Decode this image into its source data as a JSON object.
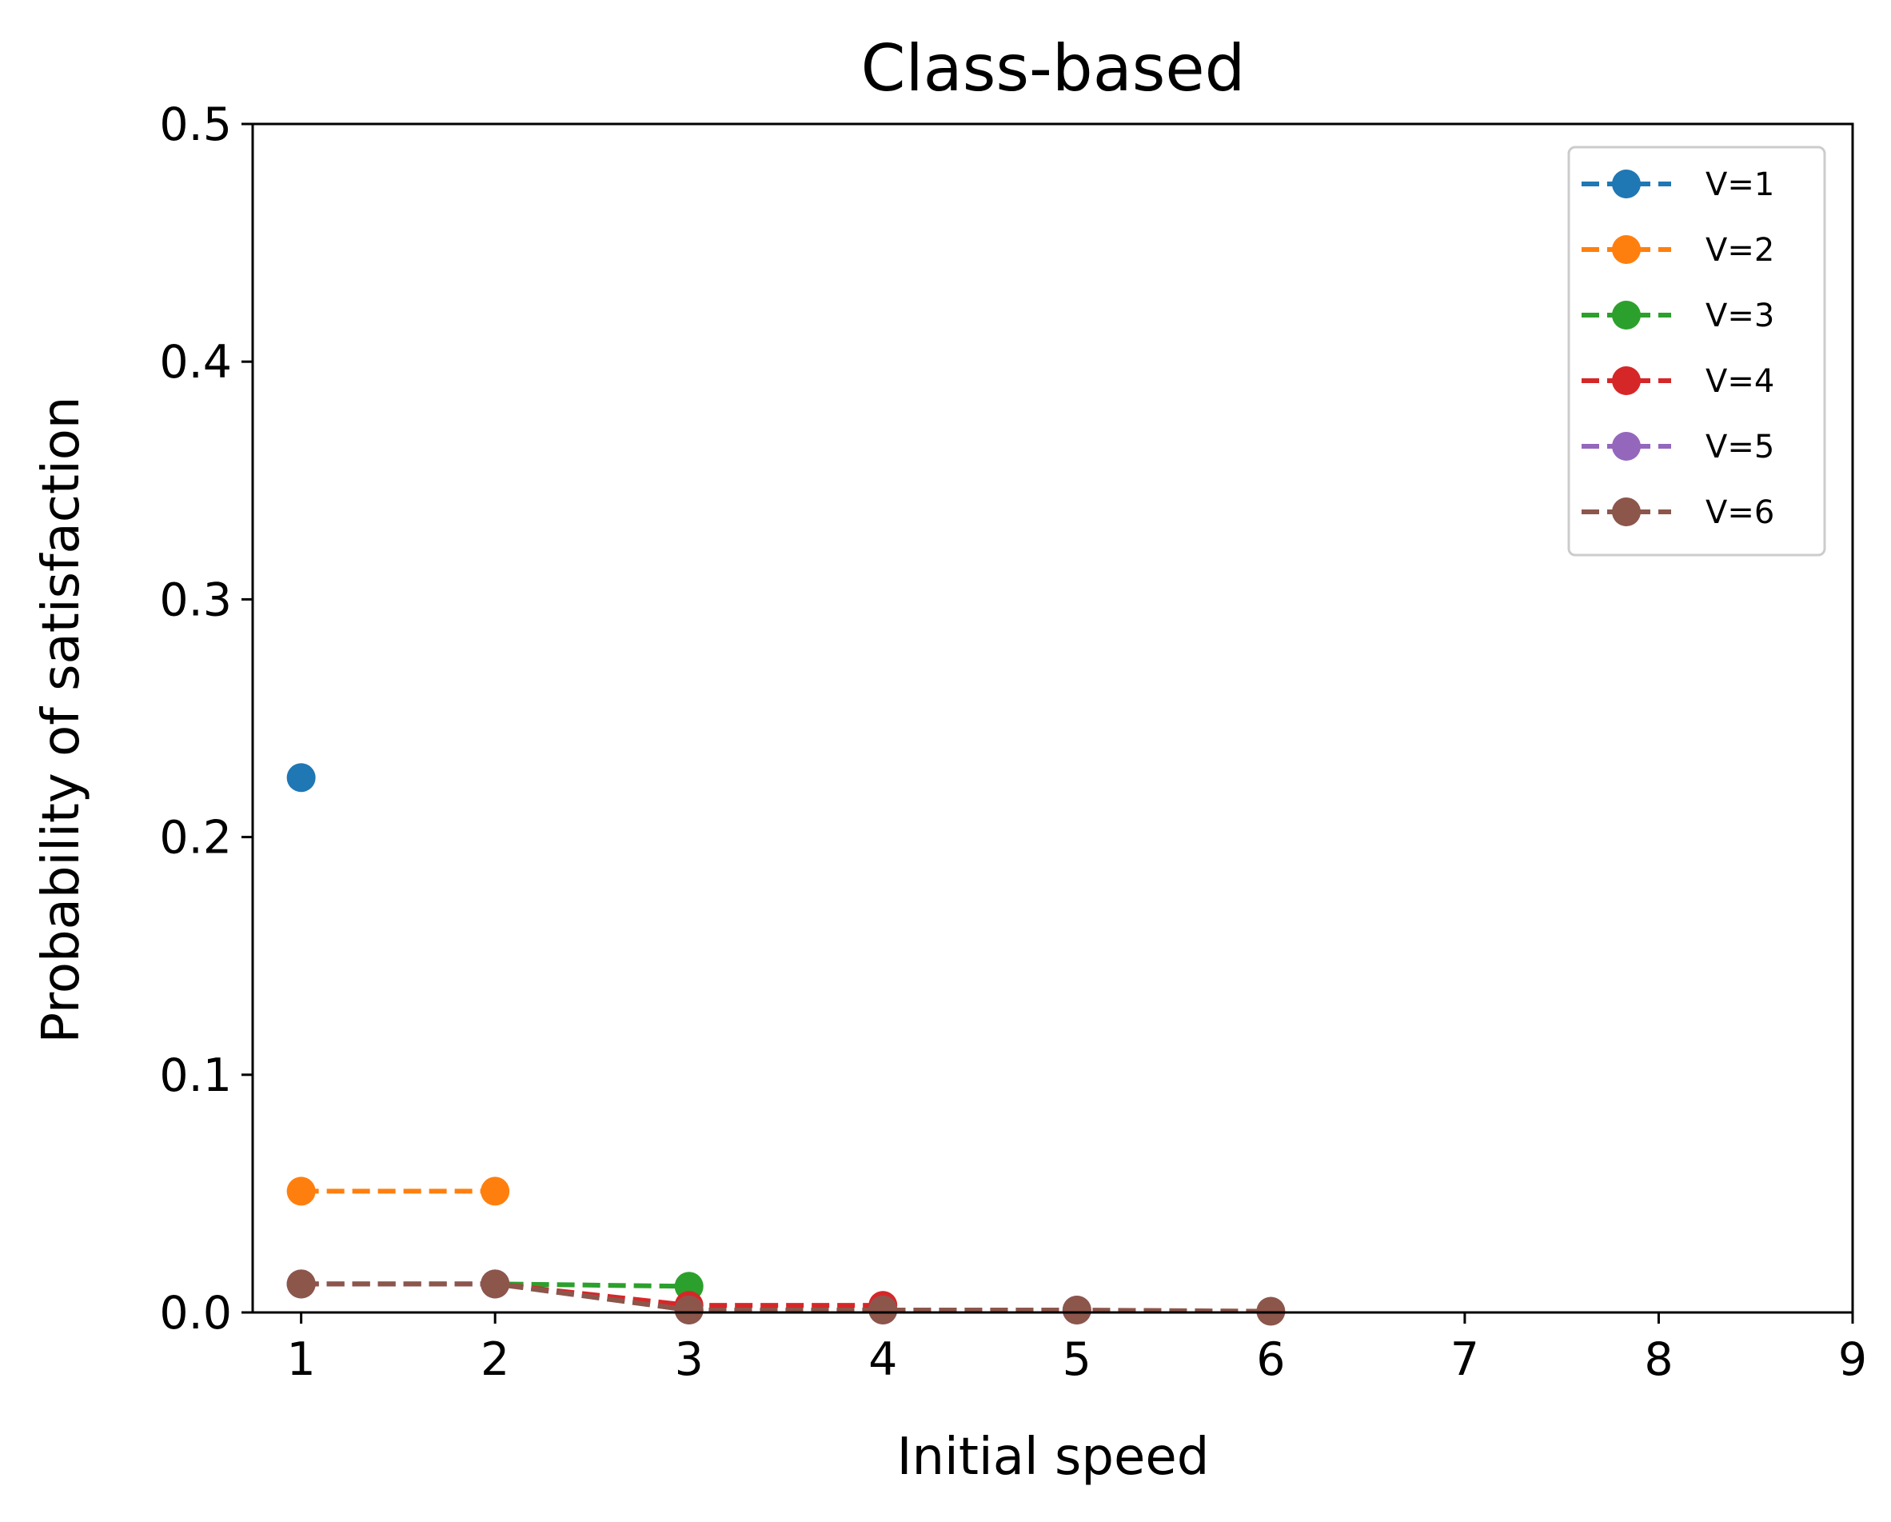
{
  "chart_data": {
    "type": "line",
    "title": "Class-based",
    "xlabel": "Initial speed",
    "ylabel": "Probability of satisfaction",
    "xlim": [
      0.75,
      9
    ],
    "ylim": [
      0,
      0.5
    ],
    "x_ticks": [
      1,
      2,
      3,
      4,
      5,
      6,
      7,
      8,
      9
    ],
    "x_tick_labels": [
      "1",
      "2",
      "3",
      "4",
      "5",
      "6",
      "7",
      "8",
      "9"
    ],
    "y_ticks": [
      0.0,
      0.1,
      0.2,
      0.3,
      0.4,
      0.5
    ],
    "y_tick_labels": [
      "0.0",
      "0.1",
      "0.2",
      "0.3",
      "0.4",
      "0.5"
    ],
    "grid": false,
    "legend_position": "top-right",
    "line_style": "dashed",
    "marker": "circle",
    "series": [
      {
        "name": "V=1",
        "color": "#1f77b4",
        "x": [
          1
        ],
        "y": [
          0.225
        ]
      },
      {
        "name": "V=2",
        "color": "#ff7f0e",
        "x": [
          1,
          2
        ],
        "y": [
          0.051,
          0.051
        ]
      },
      {
        "name": "V=3",
        "color": "#2ca02c",
        "x": [
          1,
          2,
          3
        ],
        "y": [
          0.012,
          0.012,
          0.011
        ]
      },
      {
        "name": "V=4",
        "color": "#d62728",
        "x": [
          1,
          2,
          3,
          4
        ],
        "y": [
          0.012,
          0.012,
          0.003,
          0.003
        ]
      },
      {
        "name": "V=5",
        "color": "#9467bd",
        "x": [
          1,
          2,
          3,
          4,
          5
        ],
        "y": [
          0.012,
          0.012,
          0.001,
          0.001,
          0.001
        ]
      },
      {
        "name": "V=6",
        "color": "#8c564b",
        "x": [
          1,
          2,
          3,
          4,
          5,
          6
        ],
        "y": [
          0.012,
          0.012,
          0.001,
          0.001,
          0.001,
          0.0005
        ]
      }
    ]
  }
}
